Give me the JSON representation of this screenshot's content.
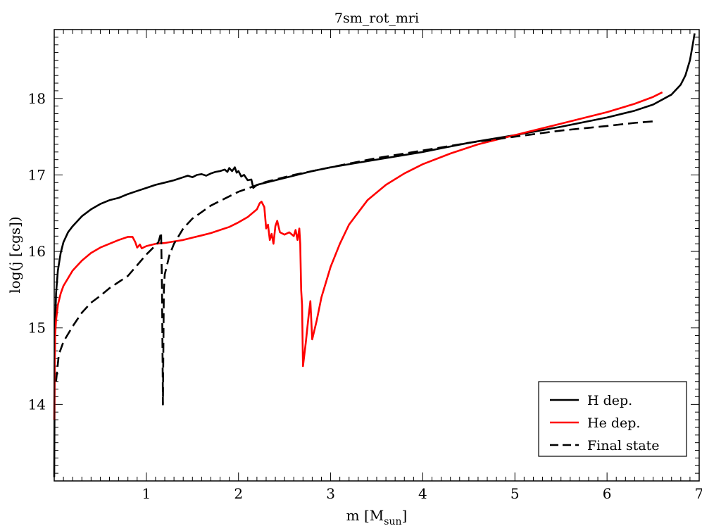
{
  "chart_data": {
    "type": "line",
    "title": "7sm_rot_mri",
    "xlabel": "m [M",
    "xlabel_sub": "sun",
    "xlabel_end": "]",
    "ylabel": "log(j [cgs])",
    "xlim": [
      0,
      7
    ],
    "ylim": [
      13.0,
      18.9
    ],
    "x_ticks": [
      1,
      2,
      3,
      4,
      5,
      6,
      7
    ],
    "y_ticks": [
      14,
      15,
      16,
      17,
      18
    ],
    "legend_position": "bottom-right",
    "grid": false,
    "series": [
      {
        "name": "H dep.",
        "color": "#000000",
        "dash": "solid",
        "points": [
          [
            0.0,
            13.05
          ],
          [
            0.005,
            14.5
          ],
          [
            0.01,
            15.0
          ],
          [
            0.02,
            15.45
          ],
          [
            0.04,
            15.75
          ],
          [
            0.07,
            15.98
          ],
          [
            0.1,
            16.12
          ],
          [
            0.15,
            16.25
          ],
          [
            0.2,
            16.33
          ],
          [
            0.3,
            16.46
          ],
          [
            0.4,
            16.55
          ],
          [
            0.5,
            16.62
          ],
          [
            0.6,
            16.67
          ],
          [
            0.7,
            16.7
          ],
          [
            0.8,
            16.75
          ],
          [
            0.9,
            16.79
          ],
          [
            1.0,
            16.83
          ],
          [
            1.1,
            16.87
          ],
          [
            1.2,
            16.9
          ],
          [
            1.3,
            16.93
          ],
          [
            1.4,
            16.97
          ],
          [
            1.45,
            16.99
          ],
          [
            1.5,
            16.97
          ],
          [
            1.55,
            17.0
          ],
          [
            1.6,
            17.01
          ],
          [
            1.65,
            16.99
          ],
          [
            1.7,
            17.02
          ],
          [
            1.75,
            17.04
          ],
          [
            1.8,
            17.05
          ],
          [
            1.85,
            17.07
          ],
          [
            1.88,
            17.04
          ],
          [
            1.9,
            17.09
          ],
          [
            1.93,
            17.05
          ],
          [
            1.96,
            17.1
          ],
          [
            1.98,
            17.03
          ],
          [
            2.0,
            17.05
          ],
          [
            2.03,
            16.98
          ],
          [
            2.06,
            17.0
          ],
          [
            2.1,
            16.93
          ],
          [
            2.14,
            16.94
          ],
          [
            2.16,
            16.83
          ],
          [
            2.2,
            16.87
          ],
          [
            2.4,
            16.93
          ],
          [
            2.6,
            16.99
          ],
          [
            2.8,
            17.05
          ],
          [
            3.0,
            17.1
          ],
          [
            3.3,
            17.16
          ],
          [
            3.6,
            17.22
          ],
          [
            4.0,
            17.3
          ],
          [
            4.5,
            17.42
          ],
          [
            5.0,
            17.52
          ],
          [
            5.5,
            17.63
          ],
          [
            6.0,
            17.75
          ],
          [
            6.3,
            17.84
          ],
          [
            6.5,
            17.92
          ],
          [
            6.7,
            18.05
          ],
          [
            6.8,
            18.18
          ],
          [
            6.85,
            18.3
          ],
          [
            6.9,
            18.5
          ],
          [
            6.93,
            18.7
          ],
          [
            6.95,
            18.85
          ]
        ]
      },
      {
        "name": "He dep.",
        "color": "#ff0000",
        "dash": "solid",
        "points": [
          [
            0.0,
            13.8
          ],
          [
            0.005,
            14.6
          ],
          [
            0.01,
            14.9
          ],
          [
            0.02,
            15.1
          ],
          [
            0.04,
            15.3
          ],
          [
            0.07,
            15.45
          ],
          [
            0.1,
            15.55
          ],
          [
            0.2,
            15.75
          ],
          [
            0.3,
            15.88
          ],
          [
            0.4,
            15.98
          ],
          [
            0.5,
            16.05
          ],
          [
            0.6,
            16.1
          ],
          [
            0.7,
            16.15
          ],
          [
            0.8,
            16.19
          ],
          [
            0.85,
            16.19
          ],
          [
            0.88,
            16.12
          ],
          [
            0.9,
            16.05
          ],
          [
            0.93,
            16.09
          ],
          [
            0.95,
            16.04
          ],
          [
            1.0,
            16.07
          ],
          [
            1.1,
            16.1
          ],
          [
            1.2,
            16.11
          ],
          [
            1.3,
            16.13
          ],
          [
            1.4,
            16.15
          ],
          [
            1.5,
            16.18
          ],
          [
            1.6,
            16.21
          ],
          [
            1.7,
            16.24
          ],
          [
            1.8,
            16.28
          ],
          [
            1.9,
            16.32
          ],
          [
            2.0,
            16.38
          ],
          [
            2.1,
            16.45
          ],
          [
            2.2,
            16.55
          ],
          [
            2.23,
            16.63
          ],
          [
            2.25,
            16.65
          ],
          [
            2.28,
            16.58
          ],
          [
            2.3,
            16.3
          ],
          [
            2.32,
            16.35
          ],
          [
            2.34,
            16.15
          ],
          [
            2.36,
            16.23
          ],
          [
            2.38,
            16.1
          ],
          [
            2.4,
            16.33
          ],
          [
            2.42,
            16.4
          ],
          [
            2.45,
            16.25
          ],
          [
            2.5,
            16.22
          ],
          [
            2.55,
            16.25
          ],
          [
            2.6,
            16.2
          ],
          [
            2.62,
            16.28
          ],
          [
            2.64,
            16.15
          ],
          [
            2.66,
            16.3
          ],
          [
            2.67,
            16.1
          ],
          [
            2.68,
            15.5
          ],
          [
            2.69,
            15.3
          ],
          [
            2.7,
            14.5
          ],
          [
            2.73,
            14.8
          ],
          [
            2.76,
            15.15
          ],
          [
            2.78,
            15.35
          ],
          [
            2.8,
            14.85
          ],
          [
            2.85,
            15.1
          ],
          [
            2.9,
            15.4
          ],
          [
            3.0,
            15.8
          ],
          [
            3.1,
            16.1
          ],
          [
            3.2,
            16.35
          ],
          [
            3.4,
            16.67
          ],
          [
            3.6,
            16.87
          ],
          [
            3.8,
            17.02
          ],
          [
            4.0,
            17.14
          ],
          [
            4.3,
            17.28
          ],
          [
            4.6,
            17.4
          ],
          [
            5.0,
            17.52
          ],
          [
            5.5,
            17.67
          ],
          [
            6.0,
            17.82
          ],
          [
            6.3,
            17.93
          ],
          [
            6.5,
            18.02
          ],
          [
            6.6,
            18.08
          ]
        ]
      },
      {
        "name": "Final state",
        "color": "#000000",
        "dash": "dashed",
        "points": [
          [
            0.02,
            14.3
          ],
          [
            0.05,
            14.65
          ],
          [
            0.1,
            14.82
          ],
          [
            0.2,
            15.02
          ],
          [
            0.3,
            15.2
          ],
          [
            0.4,
            15.33
          ],
          [
            0.5,
            15.42
          ],
          [
            0.6,
            15.52
          ],
          [
            0.7,
            15.6
          ],
          [
            0.8,
            15.68
          ],
          [
            0.9,
            15.82
          ],
          [
            1.0,
            15.96
          ],
          [
            1.05,
            16.02
          ],
          [
            1.1,
            16.08
          ],
          [
            1.13,
            16.12
          ],
          [
            1.15,
            16.2
          ],
          [
            1.16,
            16.25
          ],
          [
            1.17,
            15.5
          ],
          [
            1.18,
            14.0
          ],
          [
            1.19,
            15.5
          ],
          [
            1.2,
            15.7
          ],
          [
            1.25,
            15.95
          ],
          [
            1.3,
            16.1
          ],
          [
            1.4,
            16.3
          ],
          [
            1.5,
            16.43
          ],
          [
            1.7,
            16.6
          ],
          [
            2.0,
            16.78
          ],
          [
            2.3,
            16.91
          ],
          [
            2.6,
            17.0
          ],
          [
            3.0,
            17.1
          ],
          [
            3.5,
            17.22
          ],
          [
            4.0,
            17.32
          ],
          [
            4.5,
            17.42
          ],
          [
            5.0,
            17.5
          ],
          [
            5.5,
            17.58
          ],
          [
            6.0,
            17.64
          ],
          [
            6.3,
            17.68
          ],
          [
            6.5,
            17.7
          ]
        ]
      }
    ]
  }
}
